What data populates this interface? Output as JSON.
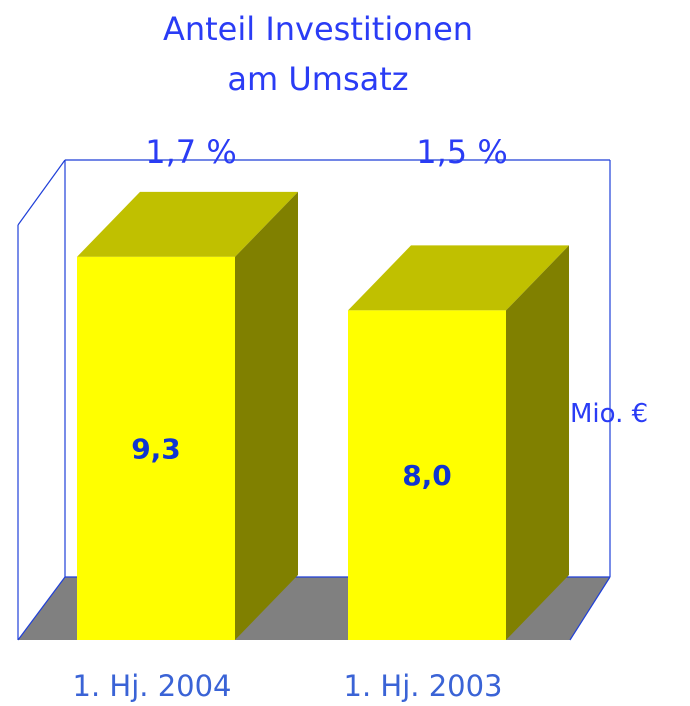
{
  "chart_data": {
    "type": "bar3d",
    "title": [
      "Anteil Investitionen",
      "am Umsatz"
    ],
    "categories": [
      "1. Hj. 2004",
      "1. Hj. 2003"
    ],
    "values": [
      9.3,
      8.0
    ],
    "value_labels": [
      "9,3",
      "8,0"
    ],
    "annotations": [
      "1,7 %",
      "1,5 %"
    ],
    "y_label": "Mio. €",
    "color": "#ffff00"
  }
}
